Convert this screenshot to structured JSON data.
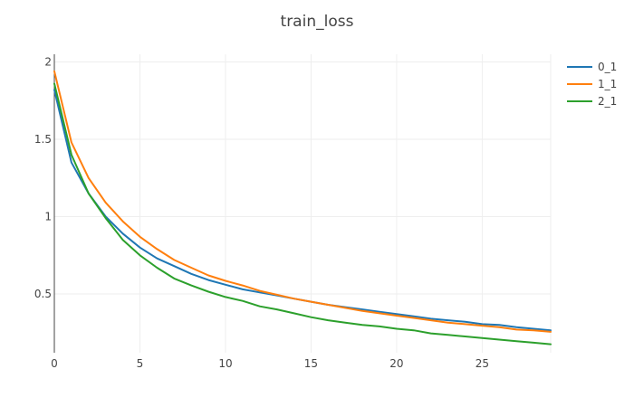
{
  "chart_data": {
    "type": "line",
    "title": "train_loss",
    "xlabel": "",
    "ylabel": "",
    "xlim": [
      0,
      29
    ],
    "ylim": [
      0.12,
      2.05
    ],
    "xticks": [
      0,
      5,
      10,
      15,
      20,
      25
    ],
    "yticks": [
      0.5,
      1,
      1.5,
      2
    ],
    "xtick_labels": [
      "0",
      "5",
      "10",
      "15",
      "20",
      "25"
    ],
    "ytick_labels": [
      "0.5",
      "1",
      "1.5",
      "2"
    ],
    "grid": true,
    "legend_position": "top-right",
    "x": [
      0,
      1,
      2,
      3,
      4,
      5,
      6,
      7,
      8,
      9,
      10,
      11,
      12,
      13,
      14,
      15,
      16,
      17,
      18,
      19,
      20,
      21,
      22,
      23,
      24,
      25,
      26,
      27,
      28,
      29
    ],
    "series": [
      {
        "name": "0_1",
        "color": "#1f77b4",
        "values": [
          1.82,
          1.35,
          1.15,
          1.0,
          0.89,
          0.8,
          0.73,
          0.68,
          0.63,
          0.59,
          0.56,
          0.53,
          0.51,
          0.49,
          0.47,
          0.45,
          0.43,
          0.415,
          0.4,
          0.385,
          0.37,
          0.355,
          0.34,
          0.33,
          0.32,
          0.305,
          0.3,
          0.285,
          0.275,
          0.265
        ]
      },
      {
        "name": "1_1",
        "color": "#ff7f0e",
        "values": [
          1.94,
          1.48,
          1.25,
          1.09,
          0.97,
          0.87,
          0.79,
          0.72,
          0.67,
          0.62,
          0.585,
          0.555,
          0.52,
          0.495,
          0.47,
          0.45,
          0.43,
          0.41,
          0.39,
          0.375,
          0.36,
          0.345,
          0.33,
          0.315,
          0.305,
          0.295,
          0.285,
          0.27,
          0.265,
          0.255
        ]
      },
      {
        "name": "2_1",
        "color": "#2ca02c",
        "values": [
          1.86,
          1.4,
          1.15,
          0.99,
          0.85,
          0.75,
          0.67,
          0.6,
          0.555,
          0.515,
          0.48,
          0.455,
          0.42,
          0.4,
          0.375,
          0.35,
          0.33,
          0.315,
          0.3,
          0.29,
          0.275,
          0.265,
          0.245,
          0.235,
          0.225,
          0.215,
          0.205,
          0.195,
          0.185,
          0.175
        ]
      }
    ]
  }
}
